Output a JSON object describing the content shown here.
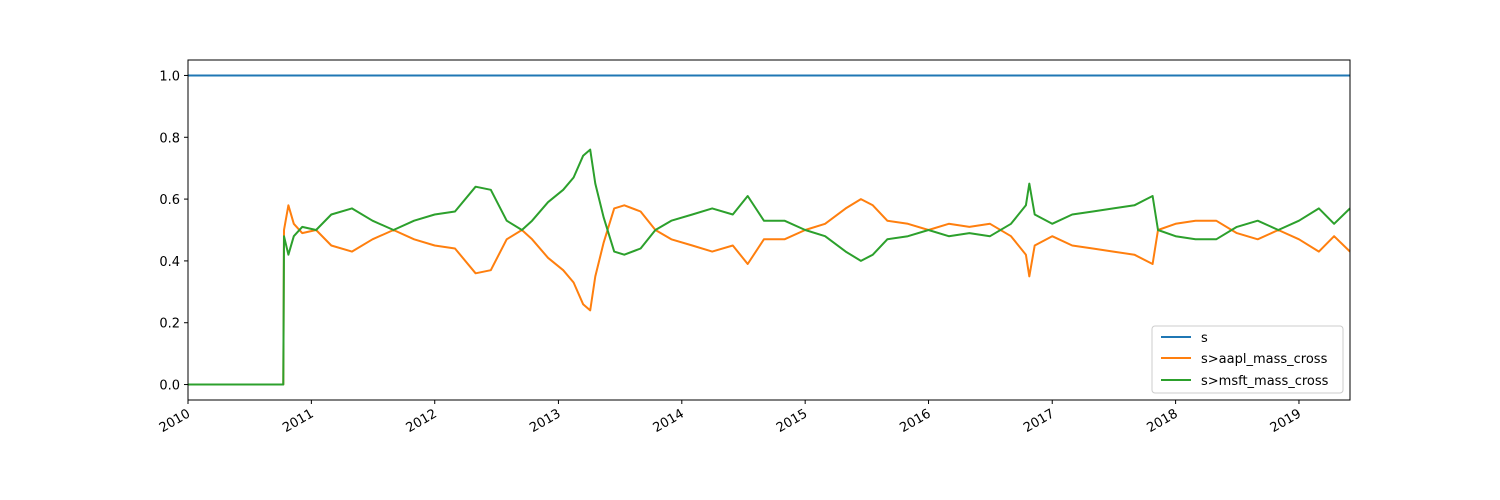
{
  "chart_data": {
    "type": "line",
    "title": "",
    "xlabel": "",
    "ylabel": "",
    "xlim": [
      "2010-01-01",
      "2019-06-01"
    ],
    "ylim": [
      -0.05,
      1.05
    ],
    "grid": false,
    "legend_placement": "lower-right",
    "x_ticks": [
      "2010",
      "2011",
      "2012",
      "2013",
      "2014",
      "2015",
      "2016",
      "2017",
      "2018",
      "2019"
    ],
    "y_ticks": [
      "0.0",
      "0.2",
      "0.4",
      "0.6",
      "0.8",
      "1.0"
    ],
    "series": [
      {
        "name": "s",
        "color": "#1f77b4",
        "points": [
          [
            "2010-01-01",
            1.0
          ],
          [
            "2019-06-01",
            1.0
          ]
        ]
      },
      {
        "name": "s>aapl_mass_cross",
        "color": "#ff7f0e",
        "points": [
          [
            "2010-01-01",
            0.0
          ],
          [
            "2010-10-10",
            0.0
          ],
          [
            "2010-10-12",
            0.5
          ],
          [
            "2010-10-25",
            0.58
          ],
          [
            "2010-11-10",
            0.52
          ],
          [
            "2010-12-05",
            0.49
          ],
          [
            "2011-01-15",
            0.5
          ],
          [
            "2011-03-01",
            0.45
          ],
          [
            "2011-05-01",
            0.43
          ],
          [
            "2011-07-01",
            0.47
          ],
          [
            "2011-09-01",
            0.5
          ],
          [
            "2011-11-01",
            0.47
          ],
          [
            "2012-01-01",
            0.45
          ],
          [
            "2012-03-01",
            0.44
          ],
          [
            "2012-05-01",
            0.36
          ],
          [
            "2012-06-15",
            0.37
          ],
          [
            "2012-08-01",
            0.47
          ],
          [
            "2012-09-15",
            0.5
          ],
          [
            "2012-10-15",
            0.47
          ],
          [
            "2012-12-01",
            0.41
          ],
          [
            "2013-01-15",
            0.37
          ],
          [
            "2013-02-15",
            0.33
          ],
          [
            "2013-03-15",
            0.26
          ],
          [
            "2013-04-05",
            0.24
          ],
          [
            "2013-04-20",
            0.35
          ],
          [
            "2013-05-15",
            0.46
          ],
          [
            "2013-06-15",
            0.57
          ],
          [
            "2013-07-15",
            0.58
          ],
          [
            "2013-09-01",
            0.56
          ],
          [
            "2013-10-15",
            0.5
          ],
          [
            "2013-12-01",
            0.47
          ],
          [
            "2014-02-01",
            0.45
          ],
          [
            "2014-04-01",
            0.43
          ],
          [
            "2014-06-01",
            0.45
          ],
          [
            "2014-07-15",
            0.39
          ],
          [
            "2014-09-01",
            0.47
          ],
          [
            "2014-11-01",
            0.47
          ],
          [
            "2015-01-01",
            0.5
          ],
          [
            "2015-03-01",
            0.52
          ],
          [
            "2015-05-01",
            0.57
          ],
          [
            "2015-06-15",
            0.6
          ],
          [
            "2015-07-20",
            0.58
          ],
          [
            "2015-09-01",
            0.53
          ],
          [
            "2015-11-01",
            0.52
          ],
          [
            "2016-01-01",
            0.5
          ],
          [
            "2016-03-01",
            0.52
          ],
          [
            "2016-05-01",
            0.51
          ],
          [
            "2016-07-01",
            0.52
          ],
          [
            "2016-09-01",
            0.48
          ],
          [
            "2016-10-15",
            0.42
          ],
          [
            "2016-10-25",
            0.35
          ],
          [
            "2016-11-10",
            0.45
          ],
          [
            "2017-01-01",
            0.48
          ],
          [
            "2017-03-01",
            0.45
          ],
          [
            "2017-05-01",
            0.44
          ],
          [
            "2017-07-01",
            0.43
          ],
          [
            "2017-09-01",
            0.42
          ],
          [
            "2017-10-25",
            0.39
          ],
          [
            "2017-11-10",
            0.5
          ],
          [
            "2018-01-01",
            0.52
          ],
          [
            "2018-03-01",
            0.53
          ],
          [
            "2018-05-01",
            0.53
          ],
          [
            "2018-07-01",
            0.49
          ],
          [
            "2018-09-01",
            0.47
          ],
          [
            "2018-11-01",
            0.5
          ],
          [
            "2019-01-01",
            0.47
          ],
          [
            "2019-03-01",
            0.43
          ],
          [
            "2019-04-15",
            0.48
          ],
          [
            "2019-06-01",
            0.43
          ]
        ]
      },
      {
        "name": "s>msft_mass_cross",
        "color": "#2ca02c",
        "points": [
          [
            "2010-01-01",
            0.0
          ],
          [
            "2010-10-10",
            0.0
          ],
          [
            "2010-10-12",
            0.48
          ],
          [
            "2010-10-25",
            0.42
          ],
          [
            "2010-11-10",
            0.48
          ],
          [
            "2010-12-05",
            0.51
          ],
          [
            "2011-01-15",
            0.5
          ],
          [
            "2011-03-01",
            0.55
          ],
          [
            "2011-05-01",
            0.57
          ],
          [
            "2011-07-01",
            0.53
          ],
          [
            "2011-09-01",
            0.5
          ],
          [
            "2011-11-01",
            0.53
          ],
          [
            "2012-01-01",
            0.55
          ],
          [
            "2012-03-01",
            0.56
          ],
          [
            "2012-05-01",
            0.64
          ],
          [
            "2012-06-15",
            0.63
          ],
          [
            "2012-08-01",
            0.53
          ],
          [
            "2012-09-15",
            0.5
          ],
          [
            "2012-10-15",
            0.53
          ],
          [
            "2012-12-01",
            0.59
          ],
          [
            "2013-01-15",
            0.63
          ],
          [
            "2013-02-15",
            0.67
          ],
          [
            "2013-03-15",
            0.74
          ],
          [
            "2013-04-05",
            0.76
          ],
          [
            "2013-04-20",
            0.65
          ],
          [
            "2013-05-15",
            0.54
          ],
          [
            "2013-06-15",
            0.43
          ],
          [
            "2013-07-15",
            0.42
          ],
          [
            "2013-09-01",
            0.44
          ],
          [
            "2013-10-15",
            0.5
          ],
          [
            "2013-12-01",
            0.53
          ],
          [
            "2014-02-01",
            0.55
          ],
          [
            "2014-04-01",
            0.57
          ],
          [
            "2014-06-01",
            0.55
          ],
          [
            "2014-07-15",
            0.61
          ],
          [
            "2014-09-01",
            0.53
          ],
          [
            "2014-11-01",
            0.53
          ],
          [
            "2015-01-01",
            0.5
          ],
          [
            "2015-03-01",
            0.48
          ],
          [
            "2015-05-01",
            0.43
          ],
          [
            "2015-06-15",
            0.4
          ],
          [
            "2015-07-20",
            0.42
          ],
          [
            "2015-09-01",
            0.47
          ],
          [
            "2015-11-01",
            0.48
          ],
          [
            "2016-01-01",
            0.5
          ],
          [
            "2016-03-01",
            0.48
          ],
          [
            "2016-05-01",
            0.49
          ],
          [
            "2016-07-01",
            0.48
          ],
          [
            "2016-09-01",
            0.52
          ],
          [
            "2016-10-15",
            0.58
          ],
          [
            "2016-10-25",
            0.65
          ],
          [
            "2016-11-10",
            0.55
          ],
          [
            "2017-01-01",
            0.52
          ],
          [
            "2017-03-01",
            0.55
          ],
          [
            "2017-05-01",
            0.56
          ],
          [
            "2017-07-01",
            0.57
          ],
          [
            "2017-09-01",
            0.58
          ],
          [
            "2017-10-25",
            0.61
          ],
          [
            "2017-11-10",
            0.5
          ],
          [
            "2018-01-01",
            0.48
          ],
          [
            "2018-03-01",
            0.47
          ],
          [
            "2018-05-01",
            0.47
          ],
          [
            "2018-07-01",
            0.51
          ],
          [
            "2018-09-01",
            0.53
          ],
          [
            "2018-11-01",
            0.5
          ],
          [
            "2019-01-01",
            0.53
          ],
          [
            "2019-03-01",
            0.57
          ],
          [
            "2019-04-15",
            0.52
          ],
          [
            "2019-06-01",
            0.57
          ]
        ]
      }
    ]
  }
}
